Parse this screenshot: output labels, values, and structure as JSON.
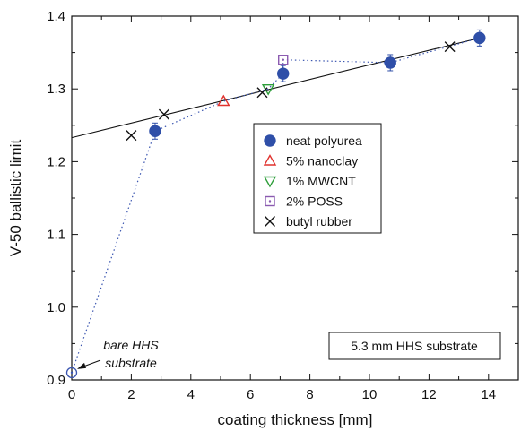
{
  "chart_data": {
    "type": "scatter",
    "xlabel": "coating thickness  [mm]",
    "ylabel": "V-50 ballistic limit",
    "xlim": [
      0,
      15
    ],
    "ylim": [
      0.9,
      1.4
    ],
    "xticks": [
      0,
      2,
      4,
      6,
      8,
      10,
      12,
      14
    ],
    "yticks": [
      0.9,
      1.0,
      1.1,
      1.2,
      1.3,
      1.4
    ],
    "xtick_labels": [
      "0",
      "2",
      "4",
      "6",
      "8",
      "10",
      "12",
      "14"
    ],
    "ytick_labels": [
      "0.9",
      "1.0",
      "1.1",
      "1.2",
      "1.3",
      "1.4"
    ],
    "legend_placement": "center-right",
    "series": [
      {
        "name": "neat polyurea",
        "marker": "filled-circle",
        "color": "#2f4fa8",
        "points": [
          [
            2.8,
            1.242
          ],
          [
            7.1,
            1.321
          ],
          [
            10.7,
            1.336
          ],
          [
            13.7,
            1.37
          ]
        ]
      },
      {
        "name": "5% nanoclay",
        "marker": "triangle-up",
        "color": "#e0322e",
        "points": [
          [
            5.1,
            1.283
          ]
        ]
      },
      {
        "name": "1% MWCNT",
        "marker": "triangle-down",
        "color": "#2e9e3a",
        "points": [
          [
            6.6,
            1.3
          ]
        ]
      },
      {
        "name": "2% POSS",
        "marker": "square-dot",
        "color": "#8a5ab0",
        "points": [
          [
            7.1,
            1.34
          ]
        ]
      },
      {
        "name": "butyl rubber",
        "marker": "x",
        "color": "#111111",
        "points": [
          [
            2.0,
            1.236
          ],
          [
            3.1,
            1.265
          ],
          [
            6.4,
            1.295
          ],
          [
            12.7,
            1.358
          ]
        ]
      }
    ],
    "bare_point": [
      0,
      0.91
    ],
    "dotted_path": [
      [
        0,
        0.91
      ],
      [
        2.8,
        1.242
      ],
      [
        5.1,
        1.283
      ],
      [
        6.6,
        1.3
      ],
      [
        7.1,
        1.321
      ],
      [
        7.1,
        1.34
      ],
      [
        10.7,
        1.336
      ],
      [
        13.7,
        1.37
      ]
    ],
    "fit_line": {
      "x": [
        0,
        13.7
      ],
      "y": [
        1.233,
        1.37
      ]
    },
    "annotations": {
      "bare_line1": "bare HHS",
      "bare_line2": "substrate",
      "substrate_box": "5.3 mm HHS substrate"
    }
  }
}
